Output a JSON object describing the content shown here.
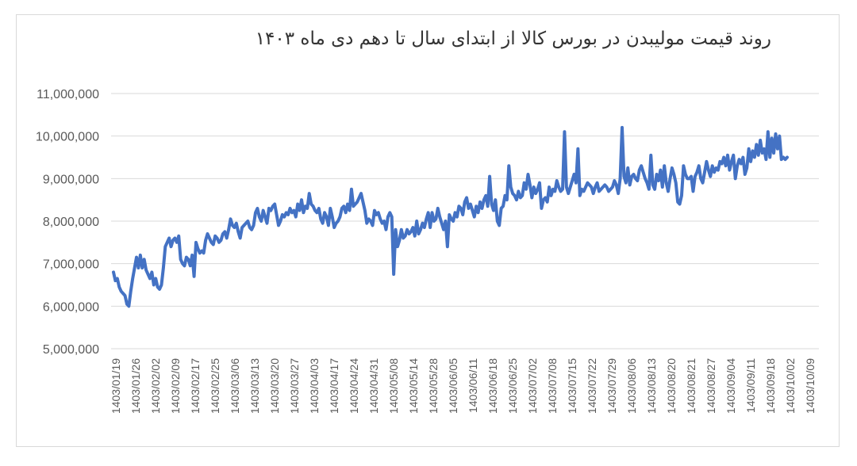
{
  "chart_data": {
    "type": "line",
    "title": "روند قیمت مولیبدن در بورس کالا از ابتدای سال تا دهم دی ماه ۱۴۰۳",
    "xlabel": "",
    "ylabel": "",
    "ylim": [
      5000000,
      11000000
    ],
    "y_ticks": [
      "5,000,000",
      "6,000,000",
      "7,000,000",
      "8,000,000",
      "9,000,000",
      "10,000,000",
      "11,000,000"
    ],
    "x_tick_labels": [
      "1403/01/19",
      "1403/01/26",
      "1403/02/02",
      "1403/02/09",
      "1403/02/17",
      "1403/02/25",
      "1403/03/06",
      "1403/03/13",
      "1403/03/20",
      "1403/03/27",
      "1403/04/03",
      "1403/04/17",
      "1403/04/24",
      "1403/04/31",
      "1403/05/08",
      "1403/05/14",
      "1403/05/28",
      "1403/06/05",
      "1403/06/11",
      "1403/06/18",
      "1403/06/25",
      "1403/07/02",
      "1403/07/08",
      "1403/07/15",
      "1403/07/22",
      "1403/07/29",
      "1403/08/06",
      "1403/08/13",
      "1403/08/20",
      "1403/08/21",
      "1403/08/27",
      "1403/09/04",
      "1403/09/11",
      "1403/09/18",
      "1403/10/02",
      "1403/10/09"
    ],
    "grid": true,
    "legend": "none",
    "color": "#4472c4",
    "series": [
      {
        "values": [
          [
            6800000,
            6600000,
            6650000,
            6450000,
            6350000,
            6300000,
            6250000,
            6050000,
            6000000,
            6350000,
            6650000,
            6900000,
            7150000,
            6900000,
            7200000,
            6900000,
            7100000,
            6850000,
            6750000,
            6650000,
            6800000,
            6500000,
            6650000,
            6450000,
            6400000,
            6500000,
            6900000,
            7400000,
            7500000,
            7600000,
            7400000,
            7550000,
            7600000,
            7500000,
            7650000,
            7100000,
            7000000,
            6950000,
            7150000,
            7100000,
            6950000,
            7200000,
            6700000,
            7500000,
            7350000,
            7250000,
            7300000,
            7250000,
            7550000,
            7700000,
            7600000,
            7500000,
            7450000,
            7650000,
            7600000,
            7500000,
            7550000,
            7700000,
            7750000,
            7600000,
            7800000,
            8050000,
            7900000,
            7850000,
            7950000,
            7750000,
            7600000,
            7850000,
            7900000,
            7950000,
            8000000,
            7850000,
            7800000,
            7900000,
            8200000,
            8300000,
            8100000,
            8000000,
            8250000,
            8100000,
            7950000,
            8300000,
            8250000,
            8350000,
            8400000,
            8150000,
            7900000,
            8000000,
            8150000,
            8100000,
            8200000,
            8150000,
            8300000,
            8200000,
            8250000,
            8100000,
            8400000,
            8250000,
            8500000,
            8200000,
            8350000,
            8300000,
            8650000,
            8400000,
            8350000,
            8250000,
            8200000,
            8300000,
            8050000,
            7950000,
            8200000,
            8100000,
            7900000,
            8300000,
            8100000,
            7850000,
            7950000,
            8000000,
            8100000,
            8300000,
            8350000,
            8200000,
            8400000,
            8250000,
            8750000,
            8350000,
            8400000,
            8450000,
            8550000,
            8650000,
            8450000,
            8250000,
            7950000,
            8050000,
            8000000,
            7900000,
            8250000,
            8150000,
            8200000,
            8050000,
            7950000,
            8000000,
            7800000,
            8100000,
            8200000,
            8100000,
            6750000,
            7800000,
            7400000,
            7550000,
            7800000,
            7600000,
            7650000,
            7800000,
            7700000,
            7750000,
            7850000,
            7650000,
            8000000,
            7700000,
            7800000,
            7950000,
            7850000,
            8050000,
            8200000,
            7850000,
            8200000,
            8000000,
            8050000,
            8300000,
            8100000,
            7950000,
            7800000,
            8000000,
            7400000,
            8150000,
            8050000,
            8000000,
            8200000,
            8100000,
            8350000,
            8300000,
            8150000,
            8450000,
            8550000,
            8300000,
            8400000,
            8250000,
            8100000,
            8350000,
            8200000,
            8450000,
            8300000,
            8500000,
            8600000,
            8350000,
            9050000,
            8400000,
            8250000,
            8500000,
            8000000,
            7900000,
            8300000,
            8350000,
            8600000,
            8500000,
            9300000,
            8800000,
            8650000,
            8600000,
            8500000,
            8700000,
            8550000,
            8600000,
            8900000,
            8750000,
            9100000,
            8850000,
            8550000,
            8800000,
            8650000,
            8750000,
            8900000,
            8300000,
            8500000,
            8550000,
            8450000,
            8800000,
            8600000,
            8750000,
            8700000,
            8950000,
            8800000,
            8700000,
            8750000,
            10100000,
            8800000,
            8650000,
            8800000,
            8950000,
            9100000,
            8900000,
            9700000,
            8600000,
            8750000,
            8700000,
            8800000,
            8900000,
            8850000,
            8800000,
            8650000,
            8800000,
            8900000,
            8700000,
            8750000,
            8800000,
            8850000,
            8800000,
            8700000,
            8750000,
            8800000,
            8950000,
            8850000,
            8650000,
            9000000,
            10200000,
            9050000,
            8900000,
            9250000,
            8850000,
            9050000,
            9100000,
            9000000,
            8950000,
            9200000,
            9300000,
            9150000,
            9000000,
            8900000,
            8750000,
            9550000,
            8850000,
            8750000,
            9100000,
            8950000,
            9200000,
            8800000,
            9300000,
            8900000,
            8700000,
            9000000,
            9250000,
            9100000,
            8900000,
            8450000,
            8400000,
            8600000,
            9300000,
            9100000,
            9000000,
            9000000,
            9050000,
            8700000,
            9050000,
            9150000,
            9300000,
            9000000,
            8900000,
            9150000,
            9400000,
            9200000,
            9050000,
            9300000,
            9150000,
            9250000,
            9200000,
            9400000,
            9350000,
            9500000,
            9300000,
            9550000,
            9200000,
            9400000,
            9550000,
            9000000,
            9300000,
            9450000,
            9350000,
            9500000,
            9100000,
            9250000,
            9700000,
            9400000,
            9650000,
            9500000,
            9800000,
            9550000,
            9900000,
            9600000,
            9700000,
            9450000,
            10100000,
            9500000,
            9950000,
            9600000,
            10050000,
            9700000,
            10000000,
            9450000,
            9500000,
            9450000,
            9500000
          ]
        ]
      }
    ]
  }
}
